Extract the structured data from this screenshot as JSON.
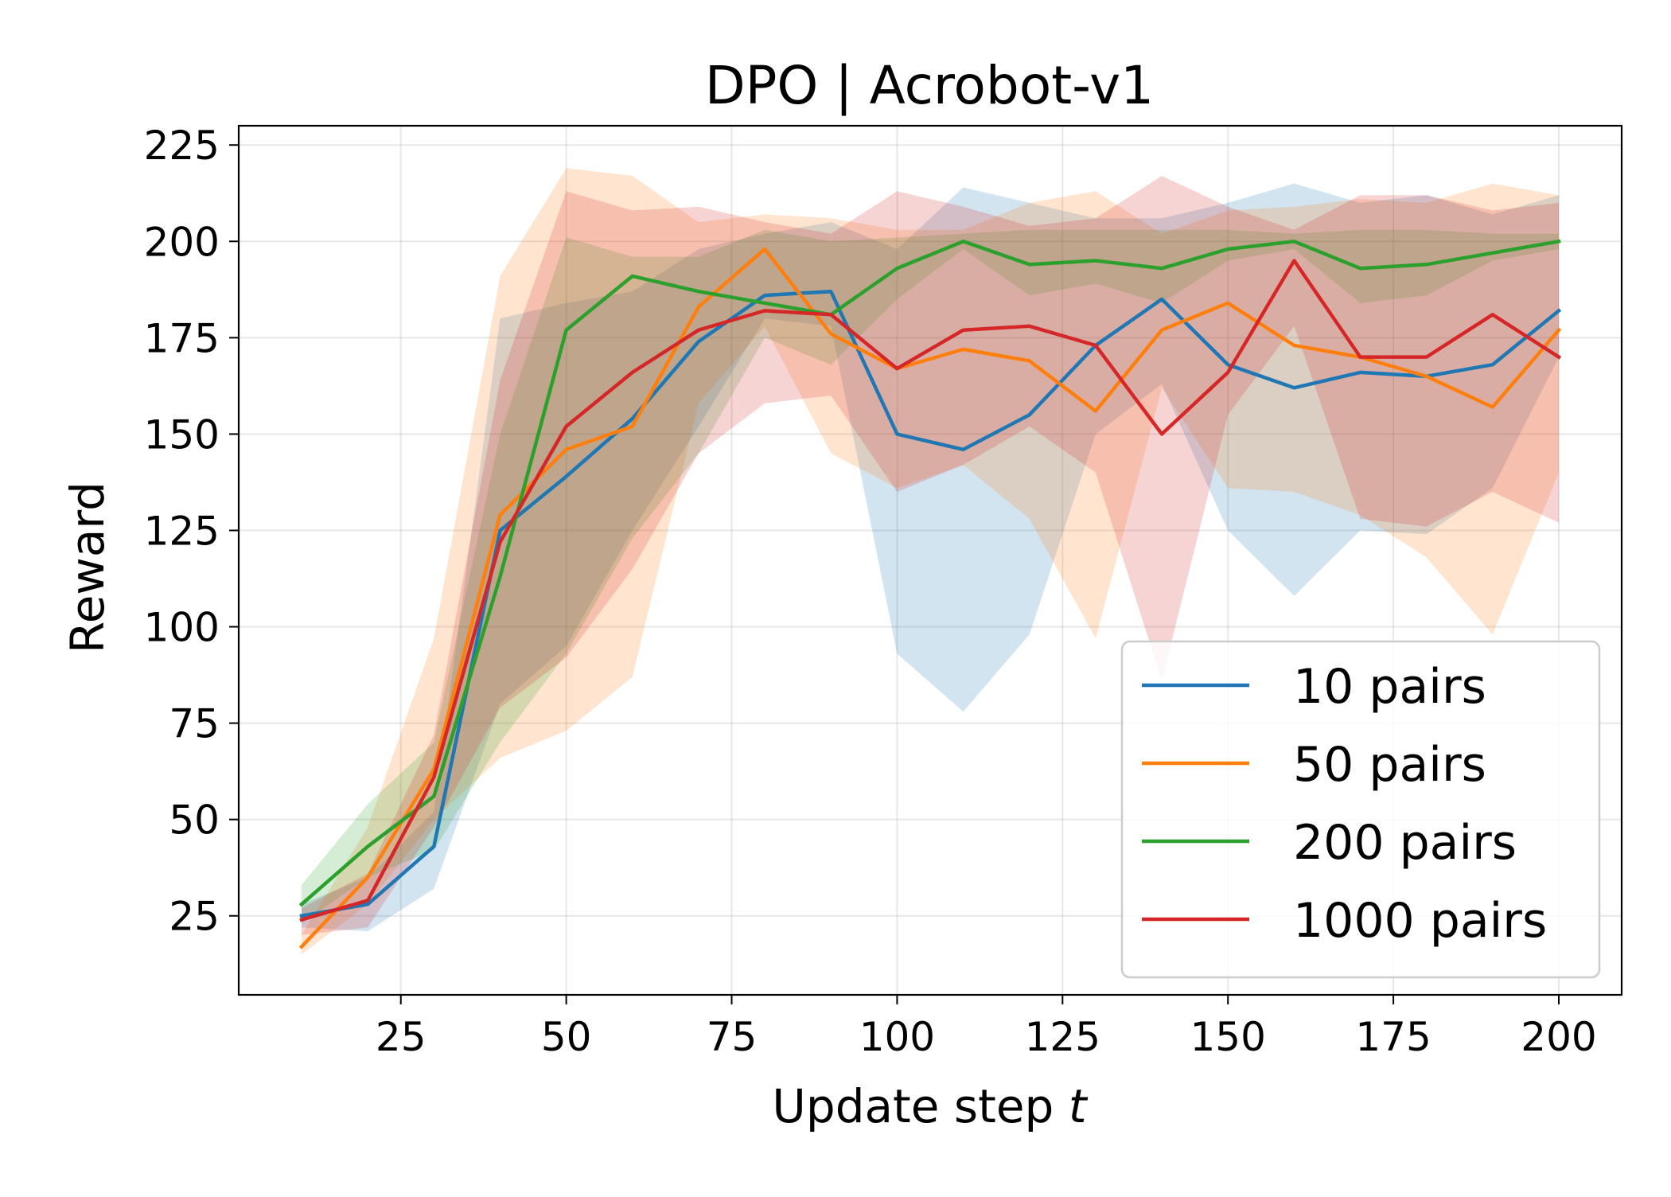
{
  "chart_data": {
    "type": "line",
    "title": "DPO | Acrobot-v1",
    "xlabel": "Update step",
    "xlabel_var": "t",
    "ylabel": "Reward",
    "xlim": [
      0.5,
      209.5
    ],
    "ylim": [
      4.5,
      230
    ],
    "xticks": [
      25,
      50,
      75,
      100,
      125,
      150,
      175,
      200
    ],
    "yticks": [
      25,
      50,
      75,
      100,
      125,
      150,
      175,
      200,
      225
    ],
    "grid": true,
    "legend_position": "bottom-right",
    "x": [
      10,
      20,
      30,
      40,
      50,
      60,
      70,
      80,
      90,
      100,
      110,
      120,
      130,
      140,
      150,
      160,
      170,
      180,
      190,
      200
    ],
    "series": [
      {
        "name": "10 pairs",
        "color": "#1f77b4",
        "values": [
          25,
          28,
          43,
          125,
          139,
          154,
          174,
          186,
          187,
          150,
          146,
          155,
          173,
          185,
          168,
          162,
          166,
          165,
          168,
          182
        ],
        "lower": [
          22,
          21,
          32,
          80,
          95,
          125,
          152,
          180,
          178,
          93,
          78,
          98,
          150,
          163,
          125,
          108,
          125,
          124,
          136,
          170
        ],
        "upper": [
          28,
          35,
          52,
          180,
          184,
          187,
          198,
          202,
          205,
          198,
          214,
          210,
          206,
          206,
          210,
          215,
          210,
          212,
          207,
          212
        ]
      },
      {
        "name": "50 pairs",
        "color": "#ff7f0e",
        "values": [
          17,
          35,
          63,
          129,
          146,
          152,
          183,
          198,
          176,
          167,
          172,
          169,
          156,
          177,
          184,
          173,
          170,
          165,
          157,
          177
        ],
        "lower": [
          15,
          28,
          50,
          66,
          73,
          87,
          158,
          178,
          145,
          136,
          142,
          128,
          97,
          162,
          136,
          135,
          129,
          118,
          98,
          140
        ],
        "upper": [
          20,
          48,
          97,
          191,
          219,
          217,
          205,
          207,
          206,
          203,
          203,
          210,
          213,
          202,
          208,
          209,
          211,
          210,
          215,
          212
        ]
      },
      {
        "name": "200 pairs",
        "color": "#2ca02c",
        "values": [
          28,
          43,
          56,
          113,
          177,
          191,
          187,
          184,
          181,
          193,
          200,
          194,
          195,
          193,
          198,
          200,
          193,
          194,
          197,
          200
        ],
        "lower": [
          23,
          35,
          42,
          70,
          93,
          123,
          145,
          175,
          168,
          185,
          198,
          186,
          189,
          184,
          195,
          198,
          184,
          186,
          195,
          198
        ],
        "upper": [
          33,
          54,
          70,
          150,
          201,
          196,
          196,
          203,
          200,
          201,
          202,
          203,
          203,
          203,
          203,
          202,
          203,
          203,
          202,
          202
        ]
      },
      {
        "name": "1000 pairs",
        "color": "#d62728",
        "values": [
          24,
          29,
          61,
          122,
          152,
          166,
          177,
          182,
          181,
          167,
          177,
          178,
          173,
          150,
          166,
          195,
          170,
          170,
          181,
          170
        ],
        "lower": [
          20,
          22,
          48,
          79,
          92,
          115,
          145,
          158,
          160,
          135,
          142,
          152,
          140,
          86,
          155,
          178,
          128,
          126,
          135,
          127
        ],
        "upper": [
          27,
          36,
          72,
          164,
          213,
          208,
          209,
          205,
          202,
          213,
          209,
          204,
          206,
          217,
          209,
          203,
          212,
          212,
          208,
          210
        ]
      }
    ]
  }
}
